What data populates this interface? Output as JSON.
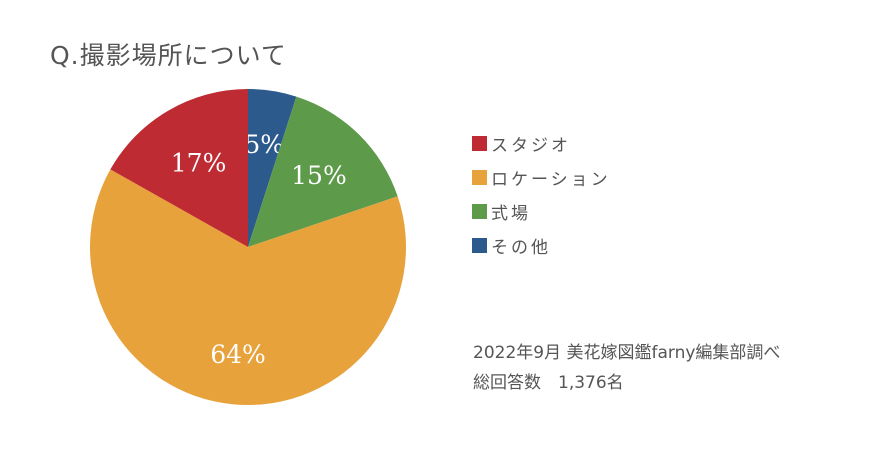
{
  "title": "Q.撮影場所について",
  "legend": {
    "items": [
      {
        "label": "スタジオ",
        "color": "#be2b33"
      },
      {
        "label": "ロケーション",
        "color": "#e8a23c"
      },
      {
        "label": "式場",
        "color": "#5d9a4a"
      },
      {
        "label": "その他",
        "color": "#2d5a8d"
      }
    ]
  },
  "note": {
    "line1": "2022年9月 美花嫁図鑑farny編集部調べ",
    "line2": "総回答数　1,376名"
  },
  "chart_data": {
    "type": "pie",
    "title": "Q.撮影場所について",
    "categories": [
      "スタジオ",
      "ロケーション",
      "式場",
      "その他"
    ],
    "values": [
      17,
      64,
      15,
      5
    ],
    "unit": "%",
    "labels": [
      "17%",
      "64%",
      "15%",
      "5%"
    ],
    "colors": [
      "#be2b33",
      "#e8a23c",
      "#5d9a4a",
      "#2d5a8d"
    ],
    "start_angle": "12 o'clock, clockwise order: その他, 式場, ロケーション, スタジオ",
    "legend_position": "right",
    "total_respondents": "1,376名"
  }
}
